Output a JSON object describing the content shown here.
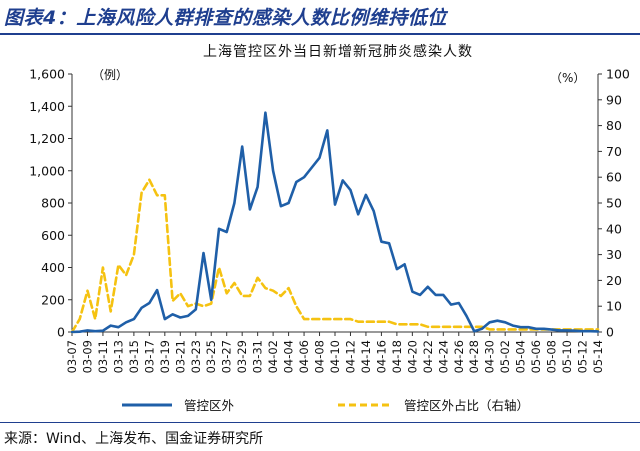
{
  "figure_title": "图表4：上海风险人群排查的感染人数比例维持低位",
  "source": "来源：Wind、上海发布、国金证券研究所",
  "chart_data": {
    "type": "line",
    "title": "上海管控区外当日新增新冠肺炎感染人数",
    "left_unit": "（例）",
    "right_unit": "（%）",
    "left_axis": {
      "min": 0,
      "max": 1600,
      "step": 200,
      "tick_labels": [
        "0",
        "200",
        "400",
        "600",
        "800",
        "1,000",
        "1,200",
        "1,400",
        "1,600"
      ]
    },
    "right_axis": {
      "min": 0,
      "max": 100,
      "step": 10,
      "tick_labels": [
        "0",
        "10",
        "20",
        "30",
        "40",
        "50",
        "60",
        "70",
        "80",
        "90",
        "100"
      ]
    },
    "x_tick_labels": [
      "03-07",
      "03-09",
      "03-11",
      "03-13",
      "03-15",
      "03-17",
      "03-19",
      "03-21",
      "03-23",
      "03-25",
      "03-27",
      "03-29",
      "03-31",
      "04-02",
      "04-04",
      "04-06",
      "04-08",
      "04-10",
      "04-12",
      "04-14",
      "04-16",
      "04-18",
      "04-20",
      "04-22",
      "04-24",
      "04-26",
      "04-28",
      "04-30",
      "05-02",
      "05-04",
      "05-06",
      "05-08",
      "05-10",
      "05-12",
      "05-14"
    ],
    "legend_position": "bottom",
    "grid": false,
    "series": [
      {
        "name": "管控区外",
        "axis": "left",
        "color": "#1f5fa8",
        "style": "solid",
        "values": [
          0,
          2,
          10,
          5,
          8,
          40,
          30,
          60,
          80,
          150,
          180,
          260,
          80,
          110,
          90,
          100,
          140,
          490,
          200,
          640,
          620,
          800,
          1150,
          760,
          900,
          1360,
          1000,
          780,
          800,
          930,
          960,
          1020,
          1080,
          1250,
          790,
          940,
          880,
          730,
          850,
          750,
          560,
          550,
          390,
          420,
          250,
          230,
          280,
          230,
          230,
          170,
          180,
          100,
          5,
          20,
          60,
          70,
          60,
          40,
          30,
          30,
          20,
          20,
          15,
          10,
          10,
          8,
          5,
          5,
          4
        ]
      },
      {
        "name": "管控区外占比（右轴）",
        "axis": "right",
        "color": "#f5c211",
        "style": "dashed",
        "values": [
          0,
          5,
          16,
          5,
          25,
          8,
          26,
          22,
          30,
          54,
          59,
          53,
          53,
          12,
          15,
          10,
          11,
          10,
          11,
          25,
          15,
          19,
          14,
          14,
          21,
          17,
          16,
          14,
          17,
          10,
          5,
          5,
          5,
          5,
          5,
          5,
          5,
          4,
          4,
          4,
          4,
          4,
          3,
          3,
          3,
          3,
          2,
          2,
          2,
          2,
          2,
          2,
          2,
          2,
          1,
          1,
          1,
          1,
          1,
          1,
          1,
          1,
          1,
          1,
          1,
          1,
          1,
          1,
          1
        ]
      }
    ]
  }
}
